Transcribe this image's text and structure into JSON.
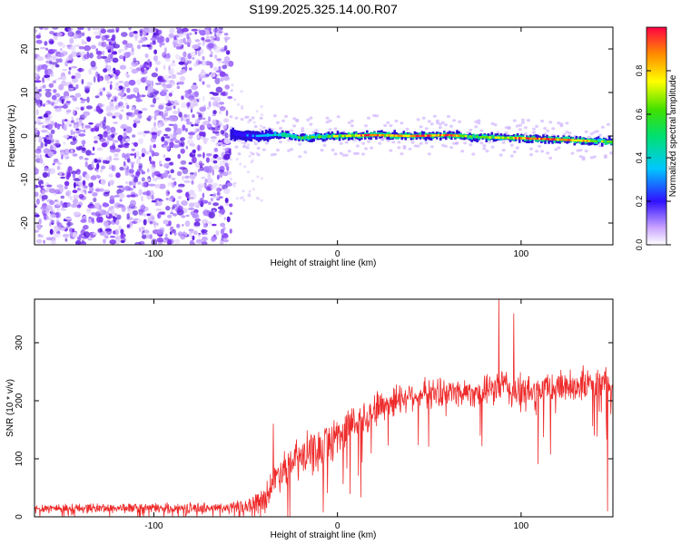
{
  "figure_title": "S199.2025.325.14.00.R07",
  "colors": {
    "scatter": "#7a2ff0",
    "band_edge": "#2a10d8",
    "snr_line": "#ee2a2a",
    "axes": "#000000"
  },
  "chart_data": [
    {
      "type": "heatmap",
      "title": "S199.2025.325.14.00.R07",
      "xlabel": "Height of straight line (km)",
      "ylabel": "Frequency (Hz)",
      "xlim": [
        -165,
        150
      ],
      "ylim": [
        -25,
        25
      ],
      "xticks": [
        -100,
        0,
        100
      ],
      "xtick_labels": [
        "-100",
        "0",
        "100"
      ],
      "yticks": [
        -20,
        -10,
        0,
        10,
        20
      ],
      "ytick_labels": [
        "-20",
        "-10",
        "0",
        "10",
        "20"
      ],
      "colorbar": {
        "label": "Normalized spectral amplitude",
        "range": [
          0.0,
          1.0
        ],
        "ticks": [
          0.0,
          0.2,
          0.4,
          0.6,
          0.8
        ],
        "tick_labels": [
          "0.0",
          "0.2",
          "0.4",
          "0.6",
          "0.8"
        ],
        "colormap": "rainbow"
      },
      "noise_region_km": [
        -165,
        -58
      ],
      "signal_band_center_hz": [
        [
          -58,
          0.5
        ],
        [
          -45,
          0.0
        ],
        [
          -30,
          0.3
        ],
        [
          -20,
          -0.4
        ],
        [
          -10,
          -0.2
        ],
        [
          0,
          0.0
        ],
        [
          20,
          0.2
        ],
        [
          40,
          0.0
        ],
        [
          60,
          0.2
        ],
        [
          80,
          -0.3
        ],
        [
          100,
          -0.5
        ],
        [
          120,
          -0.8
        ],
        [
          140,
          -1.2
        ],
        [
          150,
          -1.3
        ]
      ],
      "signal_band_peak_amplitude": [
        [
          -58,
          0.15
        ],
        [
          -45,
          0.35
        ],
        [
          -35,
          0.45
        ],
        [
          -25,
          0.55
        ],
        [
          -15,
          0.6
        ],
        [
          0,
          0.7
        ],
        [
          15,
          0.95
        ],
        [
          30,
          0.85
        ],
        [
          45,
          0.95
        ],
        [
          60,
          0.9
        ],
        [
          75,
          0.6
        ],
        [
          90,
          0.75
        ],
        [
          100,
          0.95
        ],
        [
          115,
          0.95
        ],
        [
          130,
          0.85
        ],
        [
          150,
          0.6
        ]
      ]
    },
    {
      "type": "line",
      "title": "",
      "xlabel": "Height of straight line (km)",
      "ylabel": "SNR (10 * v/v)",
      "xlim": [
        -165,
        150
      ],
      "ylim": [
        0,
        375
      ],
      "xticks": [
        -100,
        0,
        100
      ],
      "xtick_labels": [
        "-100",
        "0",
        "100"
      ],
      "yticks": [
        0,
        100,
        200,
        300
      ],
      "ytick_labels": [
        "0",
        "100",
        "200",
        "300"
      ],
      "series": [
        {
          "name": "SNR",
          "envelope": {
            "x": [
              -165,
              -150,
              -100,
              -60,
              -50,
              -40,
              -35,
              -30,
              -20,
              -10,
              0,
              10,
              20,
              30,
              40,
              60,
              80,
              90,
              100,
              120,
              150
            ],
            "mean": [
              15,
              15,
              15,
              15,
              18,
              30,
              60,
              85,
              100,
              115,
              140,
              165,
              185,
              200,
              210,
              215,
              215,
              225,
              210,
              225,
              230
            ],
            "noise": [
              10,
              10,
              10,
              12,
              14,
              28,
              35,
              40,
              45,
              45,
              45,
              40,
              38,
              35,
              30,
              30,
              30,
              40,
              40,
              35,
              35
            ]
          },
          "spikes": [
            [
              -35,
              160
            ],
            [
              88,
              375
            ],
            [
              96,
              350
            ],
            [
              147,
              10
            ]
          ]
        }
      ]
    }
  ]
}
